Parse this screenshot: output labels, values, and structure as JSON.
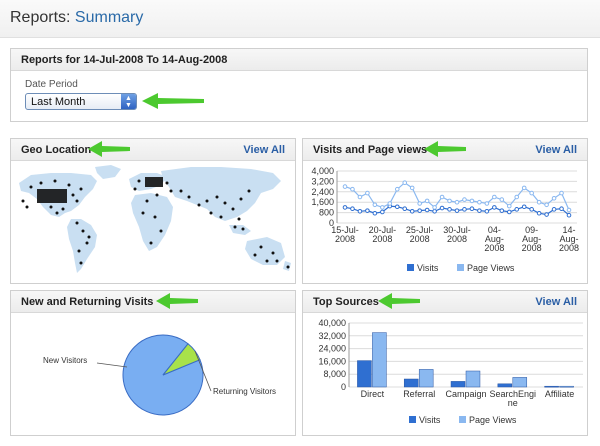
{
  "header": {
    "title_prefix": "Reports:",
    "title_main": "Summary"
  },
  "reports_panel": {
    "title": "Reports for 14-Jul-2008 To 14-Aug-2008",
    "date_period_label": "Date Period",
    "date_period_value": "Last Month"
  },
  "geo_panel": {
    "title": "Geo Location",
    "view_all": "View All"
  },
  "visits_panel": {
    "title": "Visits and Page views",
    "view_all": "View All"
  },
  "returning_panel": {
    "title": "New and Returning Visits"
  },
  "sources_panel": {
    "title": "Top Sources",
    "view_all": "View All"
  },
  "colors": {
    "visits": "#2f6fd1",
    "page_views": "#8ab8f0",
    "pie_new": "#79aef2",
    "pie_returning": "#a8e24a",
    "arrow": "#4cc92f"
  },
  "chart_data": [
    {
      "type": "line",
      "title": "Visits and Page views",
      "yticks": [
        "4,000",
        "3,200",
        "2,400",
        "1,600",
        "800",
        "0"
      ],
      "ylim": [
        0,
        4000
      ],
      "xticks": [
        {
          "l1": "15-Jul-",
          "l2": "2008"
        },
        {
          "l1": "20-Jul-",
          "l2": "2008"
        },
        {
          "l1": "25-Jul-",
          "l2": "2008"
        },
        {
          "l1": "30-Jul-",
          "l2": "2008"
        },
        {
          "l1": "04-",
          "l2": "Aug-",
          "l3": "2008"
        },
        {
          "l1": "09-",
          "l2": "Aug-",
          "l3": "2008"
        },
        {
          "l1": "14-",
          "l2": "Aug-",
          "l3": "2008"
        }
      ],
      "series": [
        {
          "name": "Visits",
          "values": [
            1200,
            1100,
            900,
            950,
            750,
            850,
            1300,
            1250,
            1100,
            900,
            950,
            1000,
            900,
            1150,
            1050,
            950,
            1050,
            1100,
            950,
            900,
            1200,
            950,
            850,
            1050,
            1250,
            1050,
            750,
            650,
            1050,
            1100,
            600
          ]
        },
        {
          "name": "Page Views",
          "values": [
            2800,
            2600,
            2000,
            2300,
            1400,
            1200,
            1500,
            2600,
            3100,
            2700,
            1500,
            1700,
            1200,
            2000,
            1700,
            1600,
            1800,
            1700,
            1600,
            1500,
            2000,
            1800,
            1300,
            2000,
            2700,
            2300,
            1600,
            1400,
            1900,
            2300,
            1000
          ]
        }
      ],
      "legend": [
        "Visits",
        "Page Views"
      ]
    },
    {
      "type": "pie",
      "title": "New and Returning Visits",
      "slices": [
        {
          "label": "New Visitors",
          "value": 92
        },
        {
          "label": "Returning Visitors",
          "value": 8
        }
      ]
    },
    {
      "type": "bar",
      "title": "Top Sources",
      "categories": [
        "Direct",
        "Referral",
        "Campaign",
        "SearchEngine",
        "Affiliate"
      ],
      "category_lines": [
        [
          "Direct"
        ],
        [
          "Referral"
        ],
        [
          "Campaign"
        ],
        [
          "SearchEngi",
          "ne"
        ],
        [
          "Affiliate"
        ]
      ],
      "yticks": [
        "40,000",
        "32,000",
        "24,000",
        "16,000",
        "8,000",
        "0"
      ],
      "ylim": [
        0,
        40000
      ],
      "series": [
        {
          "name": "Visits",
          "values": [
            16500,
            5000,
            3500,
            2000,
            500
          ]
        },
        {
          "name": "Page Views",
          "values": [
            34000,
            11000,
            10000,
            6000,
            500
          ]
        }
      ],
      "legend": [
        "Visits",
        "Page Views"
      ]
    }
  ]
}
